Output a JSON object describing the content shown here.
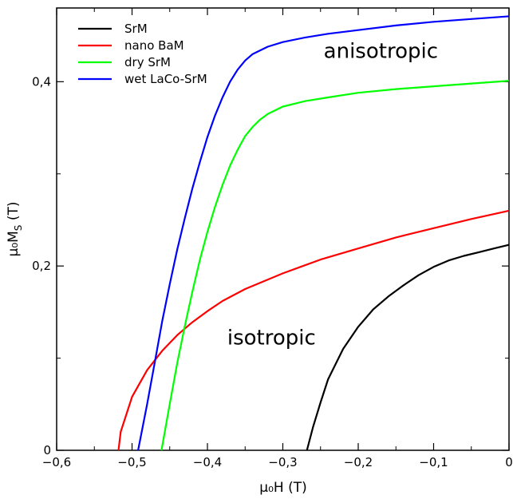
{
  "chart_data": {
    "type": "line",
    "xlabel": "μ₀H (T)",
    "ylabel": "μ₀M",
    "ylabel_subscript": "S",
    "ylabel_unit": " (T)",
    "xlim": [
      -0.6,
      0
    ],
    "ylim": [
      0,
      0.48
    ],
    "grid": false,
    "legend_position": "top-left",
    "x_ticks": [
      {
        "value": -0.6,
        "label": "−0,6"
      },
      {
        "value": -0.5,
        "label": "−0,5"
      },
      {
        "value": -0.4,
        "label": "−0,4"
      },
      {
        "value": -0.3,
        "label": "−0,3"
      },
      {
        "value": -0.2,
        "label": "−0,2"
      },
      {
        "value": -0.1,
        "label": "−0,1"
      },
      {
        "value": 0,
        "label": "0"
      }
    ],
    "y_ticks": [
      {
        "value": 0,
        "label": "0"
      },
      {
        "value": 0.2,
        "label": "0,2"
      },
      {
        "value": 0.4,
        "label": "0,4"
      }
    ],
    "series": [
      {
        "name": "SrM",
        "color": "#000000",
        "points": [
          [
            -0.268,
            0
          ],
          [
            -0.26,
            0.025
          ],
          [
            -0.25,
            0.052
          ],
          [
            -0.24,
            0.077
          ],
          [
            -0.22,
            0.11
          ],
          [
            -0.2,
            0.134
          ],
          [
            -0.18,
            0.153
          ],
          [
            -0.16,
            0.167
          ],
          [
            -0.14,
            0.179
          ],
          [
            -0.12,
            0.19
          ],
          [
            -0.1,
            0.199
          ],
          [
            -0.08,
            0.206
          ],
          [
            -0.06,
            0.211
          ],
          [
            -0.04,
            0.215
          ],
          [
            -0.02,
            0.219
          ],
          [
            0,
            0.223
          ]
        ]
      },
      {
        "name": "nano BaM",
        "color": "#ff0000",
        "points": [
          [
            -0.518,
            0
          ],
          [
            -0.515,
            0.02
          ],
          [
            -0.5,
            0.058
          ],
          [
            -0.48,
            0.087
          ],
          [
            -0.46,
            0.108
          ],
          [
            -0.44,
            0.125
          ],
          [
            -0.42,
            0.139
          ],
          [
            -0.4,
            0.151
          ],
          [
            -0.38,
            0.162
          ],
          [
            -0.35,
            0.175
          ],
          [
            -0.3,
            0.192
          ],
          [
            -0.25,
            0.207
          ],
          [
            -0.2,
            0.219
          ],
          [
            -0.15,
            0.231
          ],
          [
            -0.1,
            0.241
          ],
          [
            -0.05,
            0.251
          ],
          [
            0,
            0.26
          ]
        ]
      },
      {
        "name": "dry SrM",
        "color": "#00ff00",
        "points": [
          [
            -0.461,
            0
          ],
          [
            -0.45,
            0.05
          ],
          [
            -0.44,
            0.095
          ],
          [
            -0.43,
            0.135
          ],
          [
            -0.42,
            0.172
          ],
          [
            -0.41,
            0.207
          ],
          [
            -0.4,
            0.237
          ],
          [
            -0.39,
            0.264
          ],
          [
            -0.38,
            0.288
          ],
          [
            -0.37,
            0.309
          ],
          [
            -0.36,
            0.326
          ],
          [
            -0.35,
            0.341
          ],
          [
            -0.34,
            0.351
          ],
          [
            -0.33,
            0.359
          ],
          [
            -0.32,
            0.365
          ],
          [
            -0.3,
            0.373
          ],
          [
            -0.27,
            0.379
          ],
          [
            -0.24,
            0.383
          ],
          [
            -0.2,
            0.388
          ],
          [
            -0.15,
            0.392
          ],
          [
            -0.1,
            0.395
          ],
          [
            -0.05,
            0.398
          ],
          [
            0,
            0.401
          ]
        ]
      },
      {
        "name": "wet LaCo-SrM",
        "color": "#0000ff",
        "points": [
          [
            -0.492,
            0
          ],
          [
            -0.48,
            0.05
          ],
          [
            -0.47,
            0.095
          ],
          [
            -0.46,
            0.14
          ],
          [
            -0.45,
            0.18
          ],
          [
            -0.44,
            0.218
          ],
          [
            -0.43,
            0.252
          ],
          [
            -0.42,
            0.284
          ],
          [
            -0.41,
            0.313
          ],
          [
            -0.4,
            0.34
          ],
          [
            -0.39,
            0.363
          ],
          [
            -0.38,
            0.383
          ],
          [
            -0.37,
            0.4
          ],
          [
            -0.36,
            0.413
          ],
          [
            -0.35,
            0.423
          ],
          [
            -0.34,
            0.43
          ],
          [
            -0.32,
            0.438
          ],
          [
            -0.3,
            0.443
          ],
          [
            -0.27,
            0.448
          ],
          [
            -0.24,
            0.452
          ],
          [
            -0.2,
            0.456
          ],
          [
            -0.15,
            0.461
          ],
          [
            -0.1,
            0.465
          ],
          [
            -0.05,
            0.468
          ],
          [
            0,
            0.471
          ]
        ]
      }
    ],
    "annotations": [
      {
        "text": "anisotropic",
        "x": -0.17,
        "y": 0.426
      },
      {
        "text": "isotropic",
        "x": -0.315,
        "y": 0.115
      }
    ]
  }
}
